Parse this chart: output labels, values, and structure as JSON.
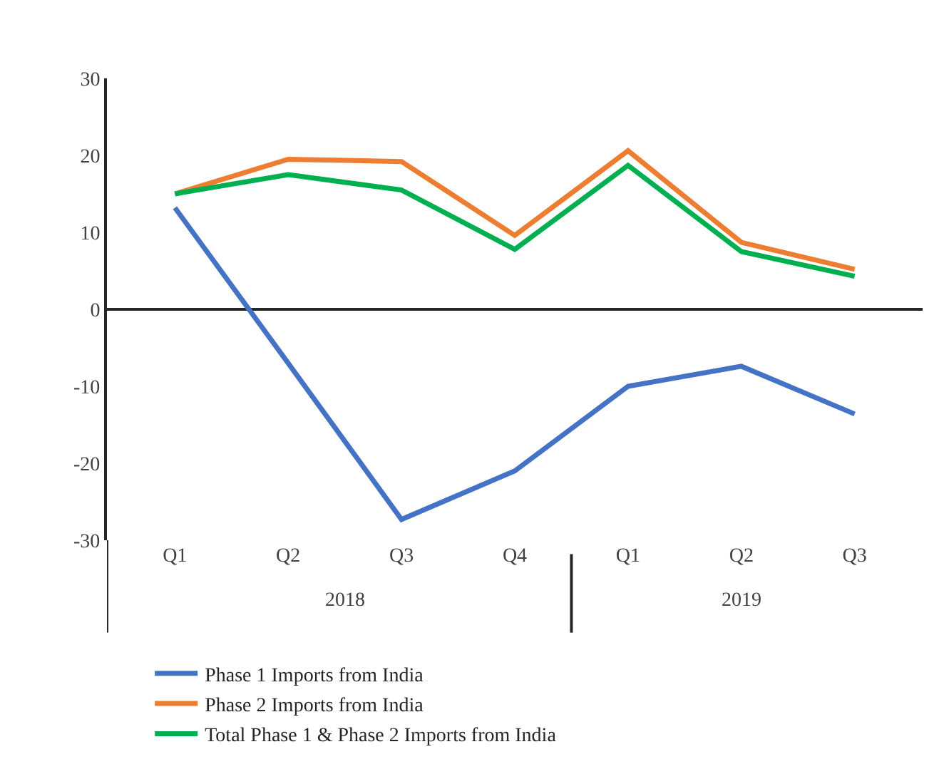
{
  "chart_data": {
    "type": "line",
    "categories": [
      "Q1",
      "Q2",
      "Q3",
      "Q4",
      "Q1",
      "Q2",
      "Q3"
    ],
    "series": [
      {
        "name": "Phase 1 Imports from India",
        "color": "#4472c4",
        "values": [
          13.2,
          -7,
          -27.3,
          -21,
          -10,
          -7.4,
          -13.6
        ]
      },
      {
        "name": "Phase 2 Imports from India",
        "color": "#ed7d31",
        "values": [
          15,
          19.5,
          19.2,
          9.6,
          20.6,
          8.7,
          5.2
        ]
      },
      {
        "name": "Total Phase 1 & Phase 2 Imports from India",
        "color": "#00b050",
        "values": [
          15,
          17.5,
          15.5,
          7.8,
          18.7,
          7.5,
          4.3
        ]
      }
    ],
    "annotations": [
      "2018",
      "2019"
    ],
    "ylim": [
      -30,
      30
    ],
    "yticks": [
      -30,
      -20,
      -10,
      0,
      10,
      20,
      30
    ],
    "legend": "bottom",
    "marker": "none",
    "line_style": "solid"
  }
}
